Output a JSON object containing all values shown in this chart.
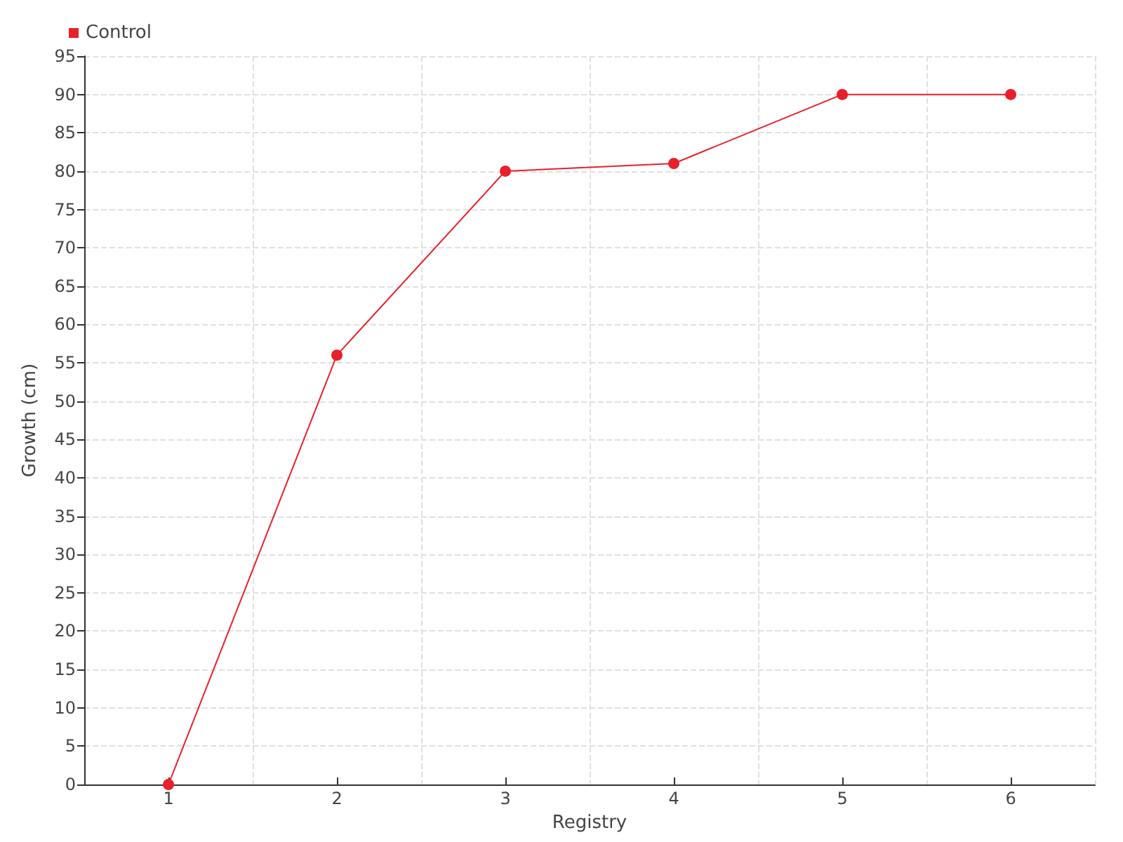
{
  "chart_data": {
    "type": "line",
    "xlabel": "Registry",
    "ylabel": "Growth (cm)",
    "categories": [
      "1",
      "2",
      "3",
      "4",
      "5",
      "6"
    ],
    "series": [
      {
        "name": "Control",
        "color": "#e8202a",
        "values": [
          0,
          56,
          80,
          81,
          90,
          90
        ]
      }
    ],
    "ylim": [
      0,
      95
    ],
    "yticks": [
      0,
      5,
      10,
      15,
      20,
      25,
      30,
      35,
      40,
      45,
      50,
      55,
      60,
      65,
      70,
      75,
      80,
      85,
      90,
      95
    ],
    "grid": true,
    "legend": "top left",
    "marker": "circle",
    "line_style": "solid"
  }
}
